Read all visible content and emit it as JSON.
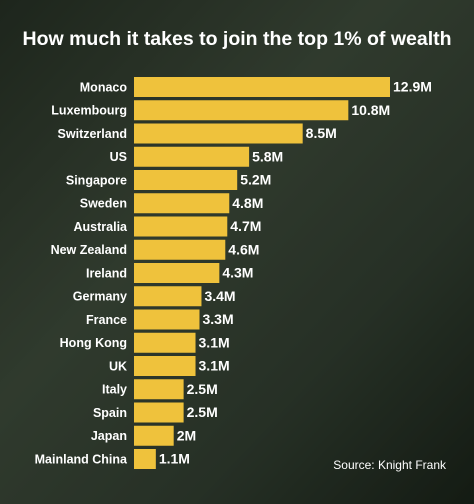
{
  "chart_data": {
    "type": "bar",
    "orientation": "horizontal",
    "title": "How much it takes to join the top 1% of wealth",
    "source": "Source: Knight Frank",
    "categories": [
      "Monaco",
      "Luxembourg",
      "Switzerland",
      "US",
      "Singapore",
      "Sweden",
      "Australia",
      "New Zealand",
      "Ireland",
      "Germany",
      "France",
      "Hong Kong",
      "UK",
      "Italy",
      "Spain",
      "Japan",
      "Mainland China"
    ],
    "values": [
      12900000,
      10800000,
      8500000,
      5800000,
      5200000,
      4800000,
      4700000,
      4600000,
      4300000,
      3400000,
      3300000,
      3100000,
      3100000,
      2500000,
      2500000,
      2000000,
      1100000
    ],
    "value_labels": [
      "12.9M",
      "10.8M",
      "8.5M",
      "5.8M",
      "5.2M",
      "4.8M",
      "4.7M",
      "4.6M",
      "4.3M",
      "3.4M",
      "3.3M",
      "3.1M",
      "3.1M",
      "2.5M",
      "2.5M",
      "2M",
      "1.1M"
    ],
    "color": "#efc23c"
  }
}
